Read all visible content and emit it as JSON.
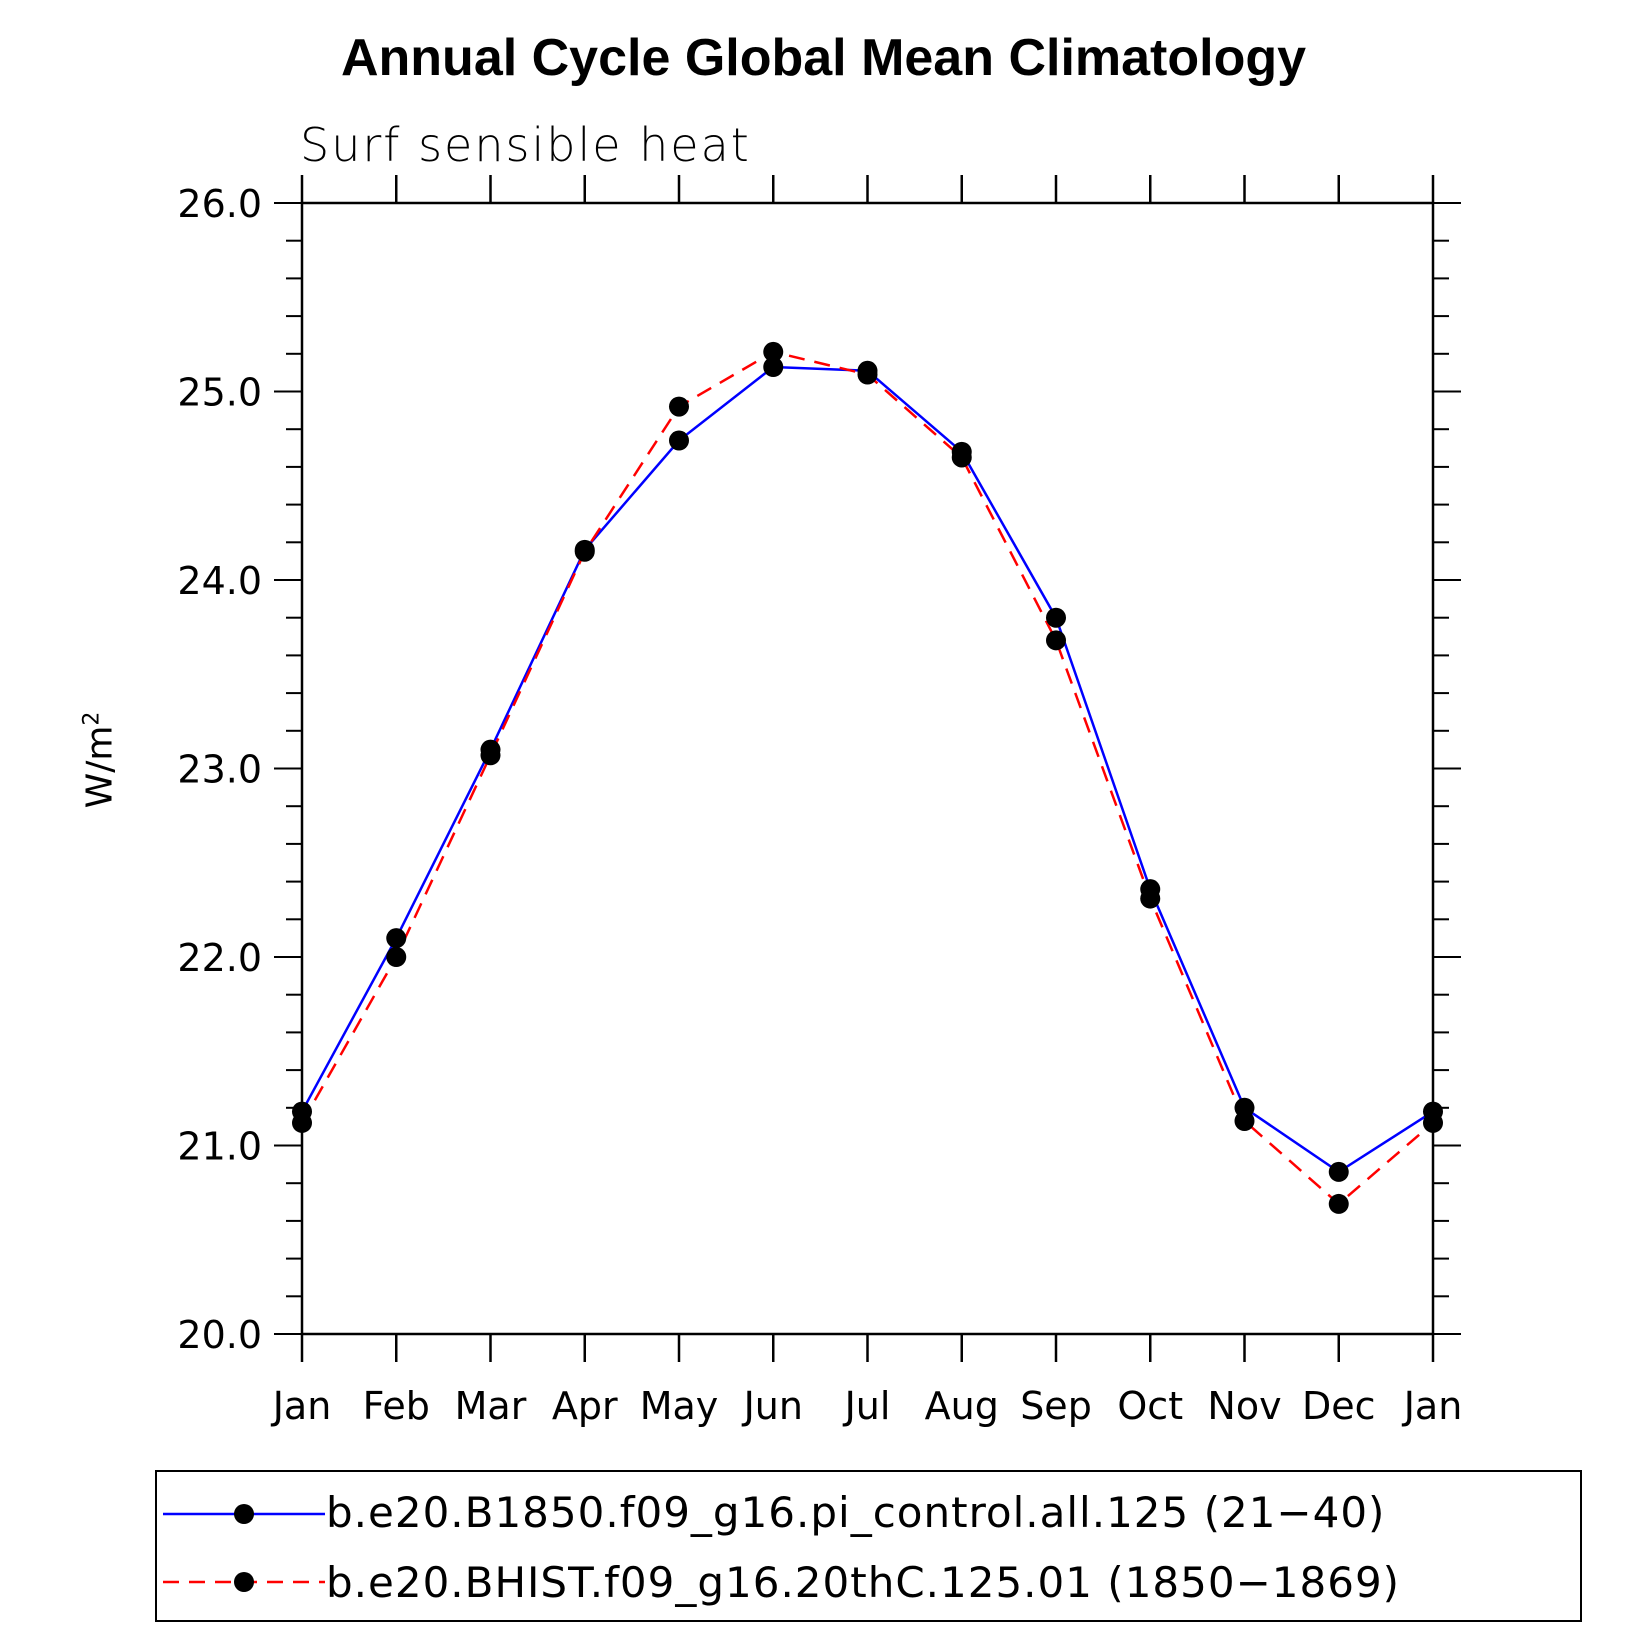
{
  "title": "Annual Cycle Global Mean Climatology",
  "subtitle": "Surf sensible heat",
  "ylabel_main": "W/m",
  "ylabel_sup": "2",
  "colors": {
    "series1": "#0000ff",
    "series2": "#ff0000",
    "marker": "#000000"
  },
  "chart_data": {
    "type": "line",
    "categories": [
      "Jan",
      "Feb",
      "Mar",
      "Apr",
      "May",
      "Jun",
      "Jul",
      "Aug",
      "Sep",
      "Oct",
      "Nov",
      "Dec",
      "Jan"
    ],
    "ylim": [
      20.0,
      26.0
    ],
    "yticks": [
      "20.0",
      "21.0",
      "22.0",
      "23.0",
      "24.0",
      "25.0",
      "26.0"
    ],
    "ylabel": "W/m2",
    "series": [
      {
        "name": "b.e20.B1850.f09_g16.pi_control.all.125 (21-40)",
        "style": "solid",
        "color": "#0000ff",
        "values": [
          21.18,
          22.1,
          23.1,
          24.16,
          24.74,
          25.13,
          25.11,
          24.68,
          23.8,
          22.36,
          21.2,
          20.86,
          21.18
        ]
      },
      {
        "name": "b.e20.BHIST.f09_g16.20thC.125.01 (1850-1869)",
        "style": "dashed",
        "color": "#ff0000",
        "values": [
          21.12,
          22.0,
          23.07,
          24.15,
          24.92,
          25.21,
          25.09,
          24.65,
          23.68,
          22.31,
          21.13,
          20.69,
          21.12
        ]
      }
    ]
  },
  "legend": [
    {
      "label": "b.e20.B1850.f09_g16.pi_control.all.125 (21−40)",
      "style": "solid",
      "color": "#0000ff"
    },
    {
      "label": "b.e20.BHIST.f09_g16.20thC.125.01 (1850−1869)",
      "style": "dashed",
      "color": "#ff0000"
    }
  ]
}
